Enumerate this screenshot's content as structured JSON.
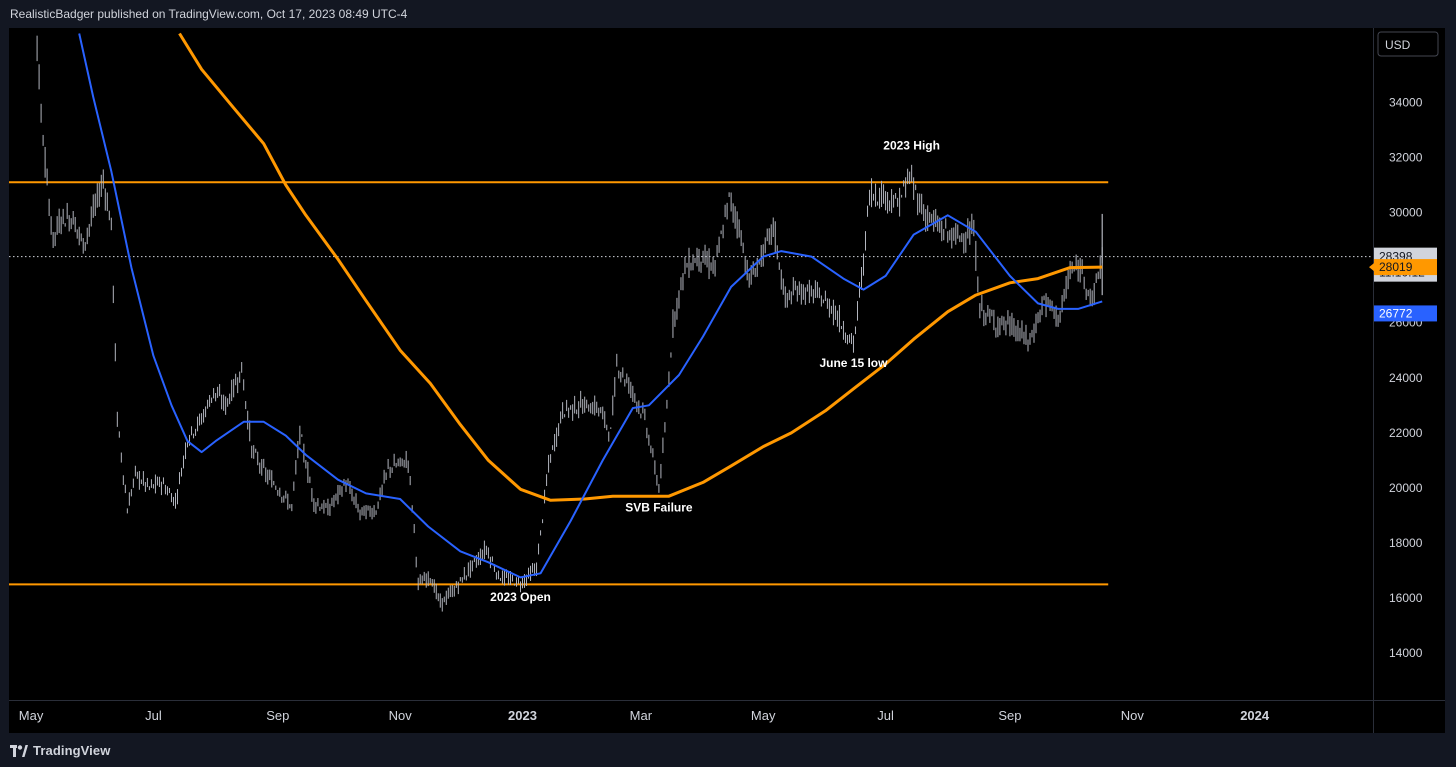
{
  "header": {
    "publisher_text": "RealisticBadger published on TradingView.com, Oct 17, 2023 08:49 UTC-4"
  },
  "footer": {
    "brand": "TradingView",
    "logo_icon": "tradingview-logo-icon"
  },
  "price_scale": {
    "currency": "USD",
    "current_price": "28398",
    "countdown": "11:10:12",
    "ma200_label": "28019",
    "ma50_label": "26772"
  },
  "colors": {
    "candle": "#b2b5be",
    "ma200": "#ff9800",
    "ma50": "#2962ff",
    "level_line": "#ff9800",
    "pane_bg": "#000000",
    "chrome_bg": "#131722"
  },
  "chart_data": {
    "type": "line",
    "title": "",
    "xlabel": "",
    "ylabel": "USD",
    "ylim": [
      12300,
      36700
    ],
    "x_range": [
      "2022-04-20",
      "2024-02-29"
    ],
    "x_ticks": [
      {
        "date": "2022-05-01",
        "label": "May",
        "bold": false
      },
      {
        "date": "2022-07-01",
        "label": "Jul",
        "bold": false
      },
      {
        "date": "2022-09-01",
        "label": "Sep",
        "bold": false
      },
      {
        "date": "2022-11-01",
        "label": "Nov",
        "bold": false
      },
      {
        "date": "2023-01-01",
        "label": "2023",
        "bold": true
      },
      {
        "date": "2023-03-01",
        "label": "Mar",
        "bold": false
      },
      {
        "date": "2023-05-01",
        "label": "May",
        "bold": false
      },
      {
        "date": "2023-07-01",
        "label": "Jul",
        "bold": false
      },
      {
        "date": "2023-09-01",
        "label": "Sep",
        "bold": false
      },
      {
        "date": "2023-11-01",
        "label": "Nov",
        "bold": false
      },
      {
        "date": "2024-01-01",
        "label": "2024",
        "bold": true
      }
    ],
    "y_ticks": [
      14000,
      16000,
      18000,
      20000,
      22000,
      24000,
      26000,
      28000,
      30000,
      32000,
      34000
    ],
    "horizontal_levels": [
      {
        "value": 31100,
        "from": "2022-04-20",
        "to": "2023-10-20"
      },
      {
        "value": 16500,
        "from": "2022-04-20",
        "to": "2023-10-20"
      }
    ],
    "current_price_line": 28398,
    "annotations": [
      {
        "text": "2023 High",
        "date": "2023-07-14",
        "value": 31850
      },
      {
        "text": "June 15 low",
        "date": "2023-06-15",
        "value": 24900
      },
      {
        "text": "SVB Failure",
        "date": "2023-03-10",
        "value": 19650
      },
      {
        "text": "2023 Open",
        "date": "2022-12-31",
        "value": 16400
      }
    ],
    "price_path": [
      [
        "2022-04-20",
        40500
      ],
      [
        "2022-05-03",
        37500
      ],
      [
        "2022-05-06",
        33500
      ],
      [
        "2022-05-09",
        31000
      ],
      [
        "2022-05-12",
        29000
      ],
      [
        "2022-05-16",
        29800
      ],
      [
        "2022-05-22",
        29800
      ],
      [
        "2022-05-27",
        28800
      ],
      [
        "2022-06-01",
        30000
      ],
      [
        "2022-06-06",
        31200
      ],
      [
        "2022-06-10",
        29500
      ],
      [
        "2022-06-13",
        22500
      ],
      [
        "2022-06-18",
        19200
      ],
      [
        "2022-06-22",
        20500
      ],
      [
        "2022-06-29",
        20000
      ],
      [
        "2022-07-05",
        20200
      ],
      [
        "2022-07-12",
        19500
      ],
      [
        "2022-07-18",
        21800
      ],
      [
        "2022-07-25",
        22500
      ],
      [
        "2022-07-31",
        23500
      ],
      [
        "2022-08-06",
        23000
      ],
      [
        "2022-08-14",
        24300
      ],
      [
        "2022-08-19",
        21400
      ],
      [
        "2022-08-26",
        20500
      ],
      [
        "2022-09-01",
        20000
      ],
      [
        "2022-09-08",
        19300
      ],
      [
        "2022-09-12",
        22000
      ],
      [
        "2022-09-19",
        19500
      ],
      [
        "2022-09-26",
        19200
      ],
      [
        "2022-10-05",
        20200
      ],
      [
        "2022-10-12",
        19100
      ],
      [
        "2022-10-20",
        19200
      ],
      [
        "2022-10-26",
        20700
      ],
      [
        "2022-11-05",
        21000
      ],
      [
        "2022-11-08",
        18500
      ],
      [
        "2022-11-10",
        16500
      ],
      [
        "2022-11-16",
        16800
      ],
      [
        "2022-11-21",
        15800
      ],
      [
        "2022-11-28",
        16300
      ],
      [
        "2022-12-05",
        17000
      ],
      [
        "2022-12-14",
        17800
      ],
      [
        "2022-12-20",
        16800
      ],
      [
        "2022-12-31",
        16550
      ],
      [
        "2023-01-08",
        17100
      ],
      [
        "2023-01-14",
        20800
      ],
      [
        "2023-01-21",
        22800
      ],
      [
        "2023-01-30",
        23000
      ],
      [
        "2023-02-08",
        22900
      ],
      [
        "2023-02-14",
        22000
      ],
      [
        "2023-02-17",
        24500
      ],
      [
        "2023-02-25",
        23500
      ],
      [
        "2023-03-03",
        22500
      ],
      [
        "2023-03-10",
        20000
      ],
      [
        "2023-03-13",
        22000
      ],
      [
        "2023-03-17",
        26000
      ],
      [
        "2023-03-23",
        28000
      ],
      [
        "2023-03-30",
        28400
      ],
      [
        "2023-04-07",
        28000
      ],
      [
        "2023-04-14",
        30500
      ],
      [
        "2023-04-19",
        29500
      ],
      [
        "2023-04-24",
        27500
      ],
      [
        "2023-05-01",
        28500
      ],
      [
        "2023-05-06",
        29500
      ],
      [
        "2023-05-12",
        26800
      ],
      [
        "2023-05-18",
        27200
      ],
      [
        "2023-05-28",
        27000
      ],
      [
        "2023-06-05",
        26500
      ],
      [
        "2023-06-10",
        25800
      ],
      [
        "2023-06-15",
        25200
      ],
      [
        "2023-06-20",
        28200
      ],
      [
        "2023-06-23",
        30700
      ],
      [
        "2023-07-01",
        30600
      ],
      [
        "2023-07-07",
        30300
      ],
      [
        "2023-07-13",
        31300
      ],
      [
        "2023-07-20",
        30000
      ],
      [
        "2023-07-30",
        29300
      ],
      [
        "2023-08-05",
        29100
      ],
      [
        "2023-08-14",
        29300
      ],
      [
        "2023-08-17",
        26500
      ],
      [
        "2023-08-25",
        26000
      ],
      [
        "2023-09-01",
        25900
      ],
      [
        "2023-09-11",
        25300
      ],
      [
        "2023-09-18",
        26800
      ],
      [
        "2023-09-26",
        26200
      ],
      [
        "2023-10-01",
        27900
      ],
      [
        "2023-10-07",
        27900
      ],
      [
        "2023-10-12",
        26800
      ],
      [
        "2023-10-17",
        28398
      ]
    ],
    "series": [
      {
        "name": "",
        "color": "#ff9800",
        "points": [
          [
            "2022-07-14",
            36500
          ],
          [
            "2022-07-25",
            35200
          ],
          [
            "2022-08-10",
            33800
          ],
          [
            "2022-08-25",
            32500
          ],
          [
            "2022-09-05",
            31000
          ],
          [
            "2022-09-15",
            29900
          ],
          [
            "2022-10-01",
            28300
          ],
          [
            "2022-10-15",
            26800
          ],
          [
            "2022-11-01",
            25000
          ],
          [
            "2022-11-16",
            23800
          ],
          [
            "2022-12-01",
            22300
          ],
          [
            "2022-12-15",
            21000
          ],
          [
            "2022-12-31",
            19950
          ],
          [
            "2023-01-15",
            19550
          ],
          [
            "2023-02-01",
            19600
          ],
          [
            "2023-02-15",
            19700
          ],
          [
            "2023-03-01",
            19700
          ],
          [
            "2023-03-15",
            19700
          ],
          [
            "2023-04-01",
            20200
          ],
          [
            "2023-04-15",
            20800
          ],
          [
            "2023-05-01",
            21500
          ],
          [
            "2023-05-15",
            22000
          ],
          [
            "2023-06-01",
            22800
          ],
          [
            "2023-06-15",
            23600
          ],
          [
            "2023-07-01",
            24500
          ],
          [
            "2023-07-15",
            25400
          ],
          [
            "2023-08-01",
            26400
          ],
          [
            "2023-08-15",
            27000
          ],
          [
            "2023-09-01",
            27450
          ],
          [
            "2023-09-15",
            27600
          ],
          [
            "2023-10-01",
            28000
          ],
          [
            "2023-10-17",
            28019
          ]
        ]
      },
      {
        "name": "",
        "color": "#2962ff",
        "points": [
          [
            "2022-05-25",
            36500
          ],
          [
            "2022-06-01",
            34200
          ],
          [
            "2022-06-10",
            31500
          ],
          [
            "2022-06-20",
            28000
          ],
          [
            "2022-07-01",
            24800
          ],
          [
            "2022-07-10",
            23000
          ],
          [
            "2022-07-18",
            21700
          ],
          [
            "2022-07-25",
            21300
          ],
          [
            "2022-08-01",
            21700
          ],
          [
            "2022-08-15",
            22400
          ],
          [
            "2022-08-25",
            22400
          ],
          [
            "2022-09-05",
            21900
          ],
          [
            "2022-09-15",
            21200
          ],
          [
            "2022-10-01",
            20300
          ],
          [
            "2022-10-15",
            19800
          ],
          [
            "2022-11-01",
            19600
          ],
          [
            "2022-11-15",
            18600
          ],
          [
            "2022-12-01",
            17700
          ],
          [
            "2022-12-15",
            17300
          ],
          [
            "2022-12-31",
            16750
          ],
          [
            "2023-01-10",
            16900
          ],
          [
            "2023-01-25",
            18800
          ],
          [
            "2023-02-10",
            21000
          ],
          [
            "2023-02-25",
            22900
          ],
          [
            "2023-03-05",
            23000
          ],
          [
            "2023-03-20",
            24100
          ],
          [
            "2023-04-01",
            25500
          ],
          [
            "2023-04-15",
            27300
          ],
          [
            "2023-05-01",
            28400
          ],
          [
            "2023-05-10",
            28600
          ],
          [
            "2023-05-25",
            28400
          ],
          [
            "2023-06-10",
            27600
          ],
          [
            "2023-06-20",
            27200
          ],
          [
            "2023-07-01",
            27700
          ],
          [
            "2023-07-15",
            29200
          ],
          [
            "2023-08-01",
            29900
          ],
          [
            "2023-08-15",
            29300
          ],
          [
            "2023-09-01",
            27700
          ],
          [
            "2023-09-15",
            26700
          ],
          [
            "2023-09-25",
            26500
          ],
          [
            "2023-10-05",
            26500
          ],
          [
            "2023-10-17",
            26772
          ]
        ]
      }
    ]
  }
}
